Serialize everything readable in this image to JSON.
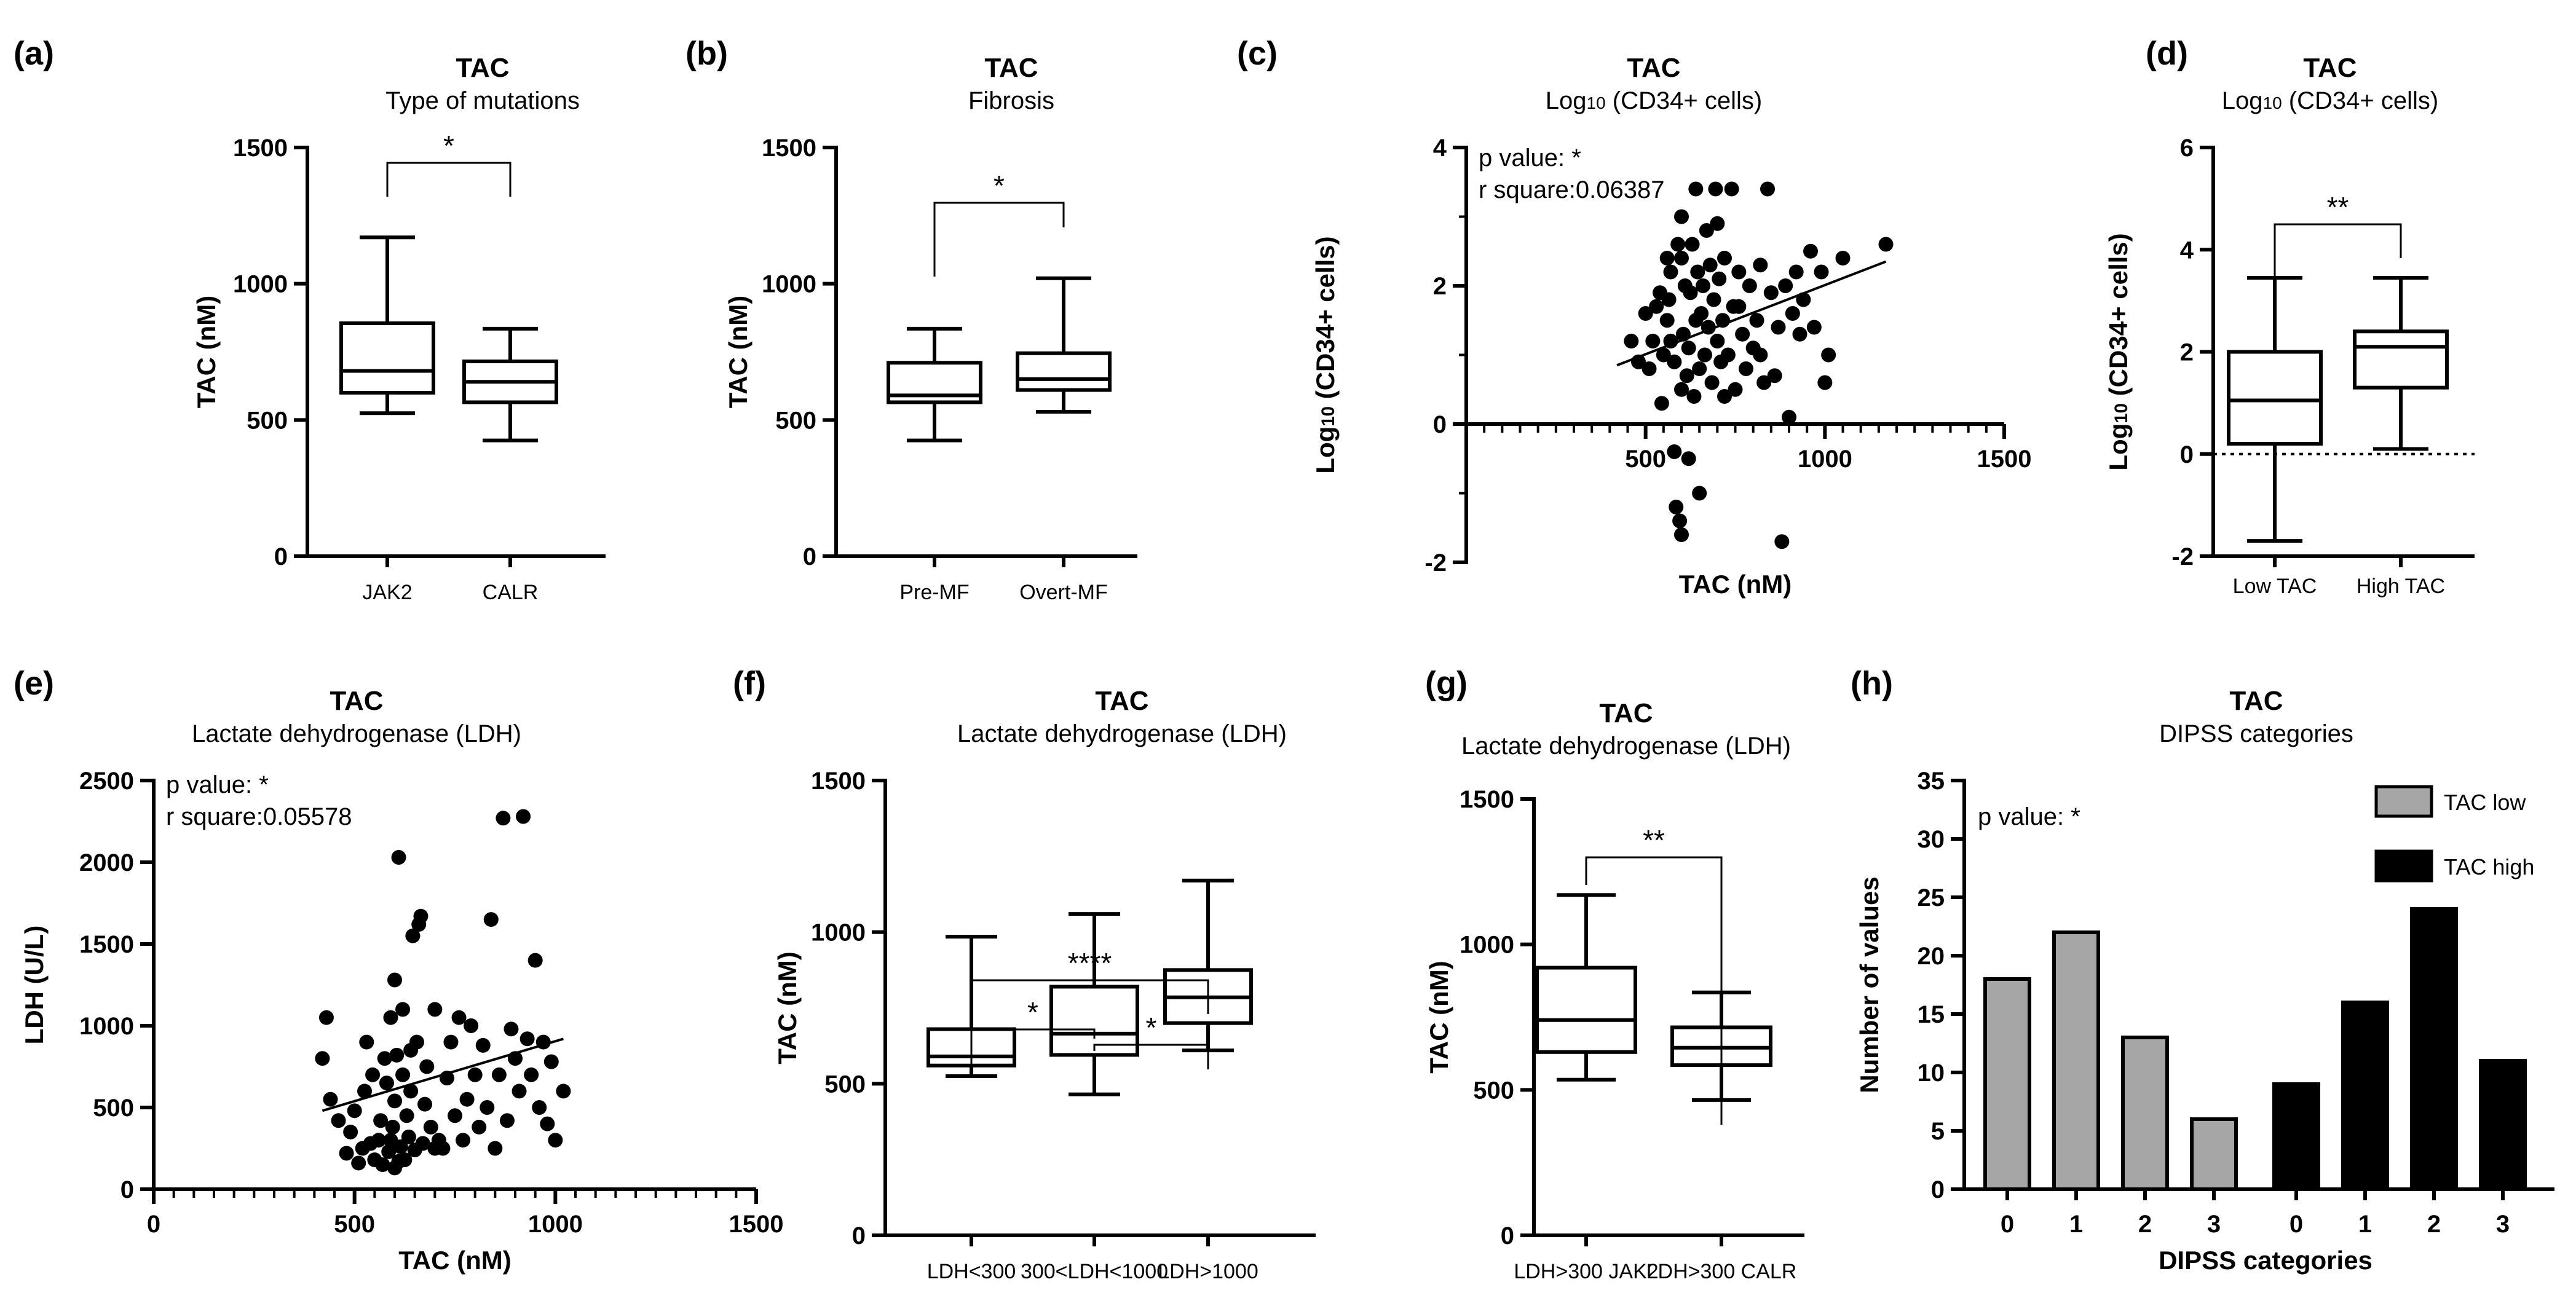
{
  "chart_data": [
    {
      "panel": "(a)",
      "type": "box",
      "title": "TAC",
      "subtitle": "Type of mutations",
      "ylabel": "TAC (nM)",
      "ylim": [
        0,
        1500
      ],
      "yticks": [
        0,
        500,
        1000,
        1500
      ],
      "categories": [
        "JAK2",
        "CALR"
      ],
      "boxes": [
        {
          "min": 525,
          "q1": 600,
          "median": 680,
          "q3": 855,
          "max": 1170
        },
        {
          "min": 425,
          "q1": 565,
          "median": 640,
          "q3": 715,
          "max": 835
        }
      ],
      "brackets": [
        {
          "from": 0,
          "to": 1,
          "label": "*"
        }
      ]
    },
    {
      "panel": "(b)",
      "type": "box",
      "title": "TAC",
      "subtitle": "Fibrosis",
      "ylabel": "TAC (nM)",
      "ylim": [
        0,
        1500
      ],
      "yticks": [
        0,
        500,
        1000,
        1500
      ],
      "categories": [
        "Pre-MF",
        "Overt-MF"
      ],
      "boxes": [
        {
          "min": 425,
          "q1": 565,
          "median": 590,
          "q3": 710,
          "max": 835
        },
        {
          "min": 530,
          "q1": 610,
          "median": 650,
          "q3": 745,
          "max": 1020
        }
      ],
      "brackets": [
        {
          "from": 0,
          "to": 1,
          "label": "*"
        }
      ]
    },
    {
      "panel": "(c)",
      "type": "scatter",
      "title": "TAC",
      "subtitle": "Log10 (CD34+ cells)",
      "xlabel": "TAC (nM)",
      "ylabel": "Log10 (CD34+ cells)",
      "xlim": [
        0,
        1500
      ],
      "xticks": [
        500,
        1000,
        1500
      ],
      "ylim": [
        -2,
        4
      ],
      "yticks": [
        -2,
        0,
        2,
        4
      ],
      "annotation": [
        "p value: *",
        "r square:0.06387"
      ],
      "fit": {
        "x": [
          420,
          1170
        ],
        "y": [
          0.85,
          2.35
        ]
      },
      "points": [
        [
          460,
          1.2
        ],
        [
          480,
          0.9
        ],
        [
          500,
          1.6
        ],
        [
          510,
          0.8
        ],
        [
          520,
          1.2
        ],
        [
          530,
          1.7
        ],
        [
          540,
          1.9
        ],
        [
          545,
          0.3
        ],
        [
          550,
          1.0
        ],
        [
          560,
          1.5
        ],
        [
          565,
          1.8
        ],
        [
          570,
          2.2
        ],
        [
          580,
          0.9
        ],
        [
          580,
          -0.4
        ],
        [
          585,
          -1.2
        ],
        [
          590,
          2.6
        ],
        [
          595,
          -1.4
        ],
        [
          600,
          0.5
        ],
        [
          600,
          -1.6
        ],
        [
          600,
          3.0
        ],
        [
          605,
          1.3
        ],
        [
          610,
          2.0
        ],
        [
          615,
          0.7
        ],
        [
          620,
          1.1
        ],
        [
          620,
          -0.5
        ],
        [
          625,
          1.9
        ],
        [
          630,
          2.6
        ],
        [
          635,
          0.4
        ],
        [
          640,
          3.4
        ],
        [
          640,
          1.5
        ],
        [
          645,
          2.2
        ],
        [
          650,
          -1.0
        ],
        [
          650,
          0.8
        ],
        [
          655,
          1.6
        ],
        [
          660,
          2.0
        ],
        [
          665,
          1.0
        ],
        [
          670,
          2.8
        ],
        [
          675,
          1.4
        ],
        [
          680,
          2.3
        ],
        [
          685,
          0.6
        ],
        [
          690,
          1.8
        ],
        [
          695,
          3.4
        ],
        [
          700,
          1.2
        ],
        [
          705,
          2.1
        ],
        [
          710,
          0.9
        ],
        [
          715,
          1.5
        ],
        [
          720,
          2.4
        ],
        [
          730,
          1.0
        ],
        [
          740,
          3.4
        ],
        [
          745,
          1.7
        ],
        [
          750,
          0.5
        ],
        [
          760,
          2.2
        ],
        [
          770,
          1.3
        ],
        [
          780,
          0.8
        ],
        [
          790,
          2.0
        ],
        [
          800,
          1.1
        ],
        [
          810,
          1.5
        ],
        [
          820,
          2.3
        ],
        [
          830,
          0.6
        ],
        [
          840,
          3.4
        ],
        [
          850,
          1.9
        ],
        [
          860,
          0.7
        ],
        [
          870,
          1.4
        ],
        [
          880,
          -1.7
        ],
        [
          890,
          2.0
        ],
        [
          900,
          0.1
        ],
        [
          910,
          1.6
        ],
        [
          920,
          2.2
        ],
        [
          930,
          1.3
        ],
        [
          940,
          1.8
        ],
        [
          960,
          2.5
        ],
        [
          970,
          1.4
        ],
        [
          990,
          2.2
        ],
        [
          1000,
          0.6
        ],
        [
          1010,
          1.0
        ],
        [
          1050,
          2.4
        ],
        [
          1170,
          2.6
        ],
        [
          560,
          2.4
        ],
        [
          570,
          1.2
        ],
        [
          600,
          2.4
        ],
        [
          700,
          2.9
        ],
        [
          720,
          0.4
        ],
        [
          760,
          1.7
        ],
        [
          820,
          1.0
        ]
      ]
    },
    {
      "panel": "(d)",
      "type": "box",
      "title": "TAC",
      "subtitle": "Log10 (CD34+ cells)",
      "ylabel": "Log10 (CD34+ cells)",
      "ylim": [
        -2,
        6
      ],
      "yticks": [
        -2,
        0,
        2,
        4,
        6
      ],
      "categories": [
        "Low TAC",
        "High TAC"
      ],
      "boxes": [
        {
          "min": -1.7,
          "q1": 0.2,
          "median": 1.05,
          "q3": 2.0,
          "max": 3.45
        },
        {
          "min": 0.1,
          "q1": 1.3,
          "median": 2.1,
          "q3": 2.4,
          "max": 3.45
        }
      ],
      "reference_line": 0,
      "brackets": [
        {
          "from": 0,
          "to": 1,
          "label": "**"
        }
      ]
    },
    {
      "panel": "(e)",
      "type": "scatter",
      "title": "TAC",
      "subtitle": "Lactate dehydrogenase (LDH)",
      "xlabel": "TAC (nM)",
      "ylabel": "LDH (U/L)",
      "xlim": [
        0,
        1500
      ],
      "xticks": [
        0,
        500,
        1000,
        1500
      ],
      "ylim": [
        0,
        2500
      ],
      "yticks": [
        0,
        500,
        1000,
        1500,
        2000,
        2500
      ],
      "annotation": [
        "p value: *",
        "r square:0.05578"
      ],
      "fit": {
        "x": [
          420,
          1020
        ],
        "y": [
          480,
          920
        ]
      },
      "points": [
        [
          420,
          800
        ],
        [
          430,
          1050
        ],
        [
          440,
          550
        ],
        [
          460,
          420
        ],
        [
          480,
          220
        ],
        [
          490,
          350
        ],
        [
          500,
          480
        ],
        [
          510,
          160
        ],
        [
          520,
          250
        ],
        [
          525,
          600
        ],
        [
          530,
          900
        ],
        [
          540,
          280
        ],
        [
          545,
          700
        ],
        [
          550,
          180
        ],
        [
          560,
          300
        ],
        [
          565,
          420
        ],
        [
          570,
          150
        ],
        [
          575,
          800
        ],
        [
          580,
          650
        ],
        [
          585,
          230
        ],
        [
          590,
          1050
        ],
        [
          595,
          380
        ],
        [
          600,
          130
        ],
        [
          600,
          540
        ],
        [
          605,
          820
        ],
        [
          610,
          2030
        ],
        [
          615,
          260
        ],
        [
          620,
          700
        ],
        [
          625,
          180
        ],
        [
          630,
          450
        ],
        [
          635,
          320
        ],
        [
          640,
          600
        ],
        [
          645,
          1550
        ],
        [
          650,
          240
        ],
        [
          655,
          900
        ],
        [
          660,
          1620
        ],
        [
          665,
          1670
        ],
        [
          670,
          280
        ],
        [
          675,
          520
        ],
        [
          680,
          750
        ],
        [
          690,
          380
        ],
        [
          700,
          1100
        ],
        [
          710,
          300
        ],
        [
          720,
          250
        ],
        [
          730,
          680
        ],
        [
          740,
          900
        ],
        [
          750,
          450
        ],
        [
          760,
          1050
        ],
        [
          770,
          300
        ],
        [
          780,
          550
        ],
        [
          790,
          1000
        ],
        [
          800,
          700
        ],
        [
          810,
          380
        ],
        [
          820,
          880
        ],
        [
          830,
          500
        ],
        [
          840,
          1650
        ],
        [
          850,
          250
        ],
        [
          860,
          700
        ],
        [
          870,
          2270
        ],
        [
          880,
          420
        ],
        [
          890,
          980
        ],
        [
          900,
          800
        ],
        [
          910,
          600
        ],
        [
          920,
          2280
        ],
        [
          930,
          920
        ],
        [
          940,
          700
        ],
        [
          950,
          1400
        ],
        [
          960,
          500
        ],
        [
          970,
          900
        ],
        [
          980,
          400
        ],
        [
          990,
          780
        ],
        [
          1000,
          300
        ],
        [
          1020,
          600
        ],
        [
          600,
          1280
        ],
        [
          620,
          1100
        ],
        [
          640,
          850
        ],
        [
          700,
          250
        ],
        [
          590,
          300
        ],
        [
          610,
          170
        ]
      ]
    },
    {
      "panel": "(f)",
      "type": "box",
      "title": "TAC",
      "subtitle": "Lactate dehydrogenase (LDH)",
      "ylabel": "TAC (nM)",
      "ylim": [
        0,
        1500
      ],
      "yticks": [
        0,
        500,
        1000,
        1500
      ],
      "categories": [
        "LDH<300",
        "300<LDH<1000",
        "LDH>1000"
      ],
      "boxes": [
        {
          "min": 525,
          "q1": 560,
          "median": 590,
          "q3": 680,
          "max": 985
        },
        {
          "min": 465,
          "q1": 595,
          "median": 665,
          "q3": 820,
          "max": 1060
        },
        {
          "min": 610,
          "q1": 700,
          "median": 785,
          "q3": 875,
          "max": 1170
        }
      ],
      "brackets": [
        {
          "from": 0,
          "to": 1,
          "label": "*"
        },
        {
          "from": 1,
          "to": 2,
          "label": "*"
        },
        {
          "from": 0,
          "to": 2,
          "label": "****"
        }
      ]
    },
    {
      "panel": "(g)",
      "type": "box",
      "title": "TAC",
      "subtitle": "Lactate dehydrogenase (LDH)",
      "ylabel": "TAC (nM)",
      "ylim": [
        0,
        1500
      ],
      "yticks": [
        0,
        500,
        1000,
        1500
      ],
      "categories": [
        "LDH>300 JAK2",
        "LDH>300 CALR"
      ],
      "boxes": [
        {
          "min": 535,
          "q1": 630,
          "median": 740,
          "q3": 920,
          "max": 1170
        },
        {
          "min": 465,
          "q1": 585,
          "median": 645,
          "q3": 715,
          "max": 835
        }
      ],
      "brackets": [
        {
          "from": 0,
          "to": 1,
          "label": "**"
        }
      ]
    },
    {
      "panel": "(h)",
      "type": "bar",
      "title": "TAC",
      "subtitle": "DIPSS categories",
      "xlabel": "DIPSS categories",
      "ylabel": "Number of values",
      "ylim": [
        0,
        35
      ],
      "yticks": [
        0,
        5,
        10,
        15,
        20,
        25,
        30,
        35
      ],
      "categories": [
        "0",
        "1",
        "2",
        "3"
      ],
      "annotation": [
        "p value: *"
      ],
      "legend_position": "top-right",
      "series": [
        {
          "name": "TAC low",
          "color": "#a6a6a6",
          "values": [
            18,
            22,
            13,
            6
          ]
        },
        {
          "name": "TAC high",
          "color": "#000000",
          "values": [
            9,
            16,
            24,
            11
          ]
        }
      ]
    }
  ]
}
